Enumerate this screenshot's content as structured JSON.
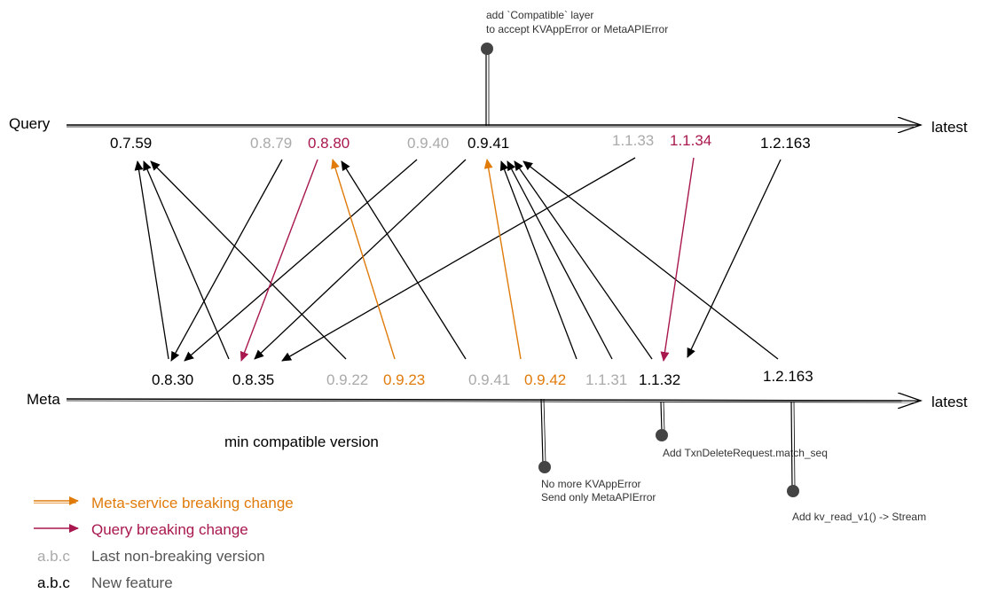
{
  "colors": {
    "breaking_meta": "#e07b0a",
    "breaking_query": "#a8174e",
    "non_breaking": "#aaaaaa",
    "new_feature": "#000000",
    "legend_text": "#555555",
    "note": "#333333"
  },
  "axes": {
    "query": {
      "label": "Query",
      "end_label": "latest"
    },
    "meta": {
      "label": "Meta",
      "end_label": "latest"
    }
  },
  "query_versions": [
    {
      "label": "0.7.59",
      "kind": "new_feature"
    },
    {
      "label": "0.8.79",
      "kind": "non_breaking"
    },
    {
      "label": "0.8.80",
      "kind": "breaking_query"
    },
    {
      "label": "0.9.40",
      "kind": "non_breaking"
    },
    {
      "label": "0.9.41",
      "kind": "new_feature"
    },
    {
      "label": "1.1.33",
      "kind": "non_breaking"
    },
    {
      "label": "1.1.34",
      "kind": "breaking_query"
    },
    {
      "label": "1.2.163",
      "kind": "new_feature"
    }
  ],
  "meta_versions": [
    {
      "label": "0.8.30",
      "kind": "new_feature"
    },
    {
      "label": "0.8.35",
      "kind": "new_feature"
    },
    {
      "label": "0.9.22",
      "kind": "non_breaking"
    },
    {
      "label": "0.9.23",
      "kind": "breaking_meta"
    },
    {
      "label": "0.9.41",
      "kind": "non_breaking"
    },
    {
      "label": "0.9.42",
      "kind": "breaking_meta"
    },
    {
      "label": "1.1.31",
      "kind": "non_breaking"
    },
    {
      "label": "1.1.32",
      "kind": "new_feature"
    },
    {
      "label": "1.2.163",
      "kind": "new_feature"
    }
  ],
  "notes": {
    "compatible_layer": [
      "add `Compatible` layer",
      "to accept KVAppError or MetaAPIError"
    ],
    "no_more_kvapperror": [
      "No more KVAppError",
      "Send only MetaAPIError"
    ],
    "txn_delete": "Add TxnDeleteRequest.match_seq",
    "kv_read": "Add kv_read_v1() -> Stream"
  },
  "caption": "min compatible version",
  "legend": [
    {
      "swatch": "arrow",
      "kind": "breaking_meta",
      "text": "Meta-service breaking change"
    },
    {
      "swatch": "arrow",
      "kind": "breaking_query",
      "text": "Query breaking change"
    },
    {
      "swatch": "a.b.c",
      "kind": "non_breaking",
      "text": "Last non-breaking version"
    },
    {
      "swatch": "a.b.c",
      "kind": "new_feature",
      "text": "New feature"
    }
  ]
}
